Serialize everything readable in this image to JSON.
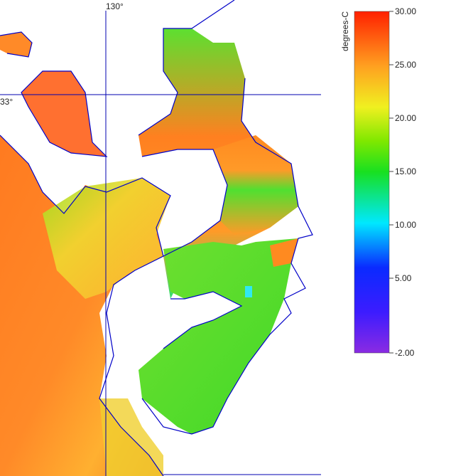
{
  "map": {
    "graticule": {
      "lon_label": "130°",
      "lat_label": "33°"
    },
    "colorbar": {
      "label": "degrees-C",
      "range": [
        -2,
        30
      ],
      "ticks": [
        {
          "value": 30,
          "label": "30.00"
        },
        {
          "value": 25,
          "label": "25.00"
        },
        {
          "value": 20,
          "label": "20.00"
        },
        {
          "value": 15,
          "label": "15.00"
        },
        {
          "value": 10,
          "label": "10.00"
        },
        {
          "value": 5,
          "label": "5.00"
        },
        {
          "value": -2,
          "label": "-2.00"
        }
      ]
    }
  }
}
